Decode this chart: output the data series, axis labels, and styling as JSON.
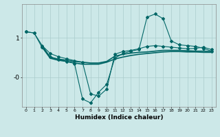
{
  "xlabel": "Humidex (Indice chaleur)",
  "background_color": "#cce8e8",
  "grid_color": "#aacccc",
  "line_color": "#006666",
  "x_ticks": [
    0,
    1,
    2,
    3,
    4,
    5,
    6,
    7,
    8,
    9,
    10,
    11,
    12,
    13,
    14,
    15,
    16,
    17,
    18,
    19,
    20,
    21,
    22,
    23
  ],
  "ylim": [
    -0.75,
    1.85
  ],
  "xlim": [
    -0.5,
    23.5
  ],
  "line1_x": [
    0,
    1,
    2,
    3,
    4,
    5,
    6,
    7,
    8,
    9,
    10,
    11,
    12,
    13,
    14,
    15,
    16,
    17,
    18,
    19,
    20,
    21,
    22,
    23
  ],
  "line1_y": [
    1.15,
    1.12,
    0.8,
    0.6,
    0.52,
    0.47,
    0.42,
    0.38,
    -0.42,
    -0.48,
    -0.3,
    0.58,
    0.65,
    0.68,
    0.72,
    0.78,
    0.8,
    0.78,
    0.76,
    0.74,
    0.72,
    0.73,
    0.76,
    0.7
  ],
  "line2_x": [
    0,
    1,
    2,
    3,
    4,
    5,
    6,
    7,
    8,
    9,
    10,
    11,
    12,
    13,
    14,
    15,
    16,
    17,
    18,
    19,
    20,
    21,
    22,
    23
  ],
  "line2_y": [
    1.15,
    1.12,
    0.75,
    0.52,
    0.45,
    0.4,
    0.35,
    -0.55,
    -0.65,
    -0.38,
    -0.18,
    0.48,
    0.6,
    0.66,
    0.7,
    1.52,
    1.6,
    1.48,
    0.92,
    0.82,
    0.8,
    0.78,
    0.73,
    0.66
  ],
  "line3_x": [
    2,
    3,
    4,
    5,
    6,
    7,
    8,
    9,
    10,
    11,
    12,
    13,
    14,
    15,
    16,
    17,
    18,
    19,
    20,
    21,
    22,
    23
  ],
  "line3_y": [
    0.8,
    0.5,
    0.46,
    0.43,
    0.4,
    0.38,
    0.36,
    0.36,
    0.4,
    0.53,
    0.58,
    0.61,
    0.63,
    0.64,
    0.66,
    0.68,
    0.68,
    0.68,
    0.67,
    0.66,
    0.66,
    0.65
  ],
  "line4_x": [
    2,
    3,
    4,
    5,
    6,
    7,
    8,
    9,
    10,
    11,
    12,
    13,
    14,
    15,
    16,
    17,
    18,
    19,
    20,
    21,
    22,
    23
  ],
  "line4_y": [
    0.76,
    0.48,
    0.43,
    0.4,
    0.36,
    0.33,
    0.33,
    0.33,
    0.38,
    0.46,
    0.51,
    0.55,
    0.58,
    0.6,
    0.62,
    0.64,
    0.65,
    0.65,
    0.64,
    0.64,
    0.63,
    0.63
  ]
}
